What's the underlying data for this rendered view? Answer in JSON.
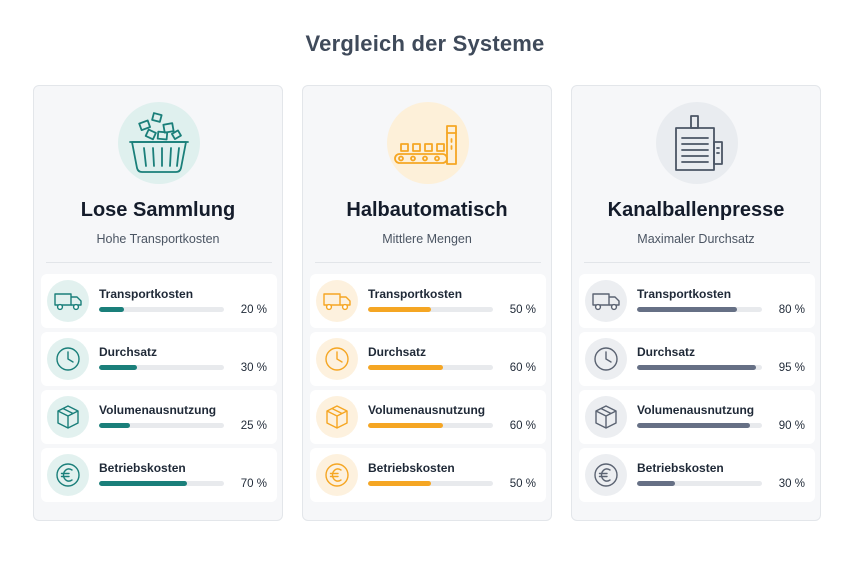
{
  "page": {
    "title": "Vergleich der Systeme"
  },
  "colors": {
    "teal": "#1a7f7a",
    "orange": "#f5a623",
    "slate": "#667085"
  },
  "cards": [
    {
      "title": "Lose Sammlung",
      "subtitle": "Hohe Transportkosten",
      "hero_icon": "loose-basket-icon",
      "metrics": [
        {
          "label": "Transportkosten",
          "value": "20 %",
          "level": 20,
          "icon": "truck-icon"
        },
        {
          "label": "Durchsatz",
          "value": "30 %",
          "level": 30,
          "icon": "clock-icon"
        },
        {
          "label": "Volumenausnutzung",
          "value": "25 %",
          "level": 25,
          "icon": "box-icon"
        },
        {
          "label": "Betriebskosten",
          "value": "70 %",
          "level": 70,
          "icon": "euro-icon"
        }
      ]
    },
    {
      "title": "Halbautomatisch",
      "subtitle": "Mittlere Mengen",
      "hero_icon": "conveyor-icon",
      "metrics": [
        {
          "label": "Transportkosten",
          "value": "50 %",
          "level": 50,
          "icon": "truck-icon"
        },
        {
          "label": "Durchsatz",
          "value": "60 %",
          "level": 60,
          "icon": "clock-icon"
        },
        {
          "label": "Volumenausnutzung",
          "value": "60 %",
          "level": 60,
          "icon": "box-icon"
        },
        {
          "label": "Betriebskosten",
          "value": "50 %",
          "level": 50,
          "icon": "euro-icon"
        }
      ]
    },
    {
      "title": "Kanalballenpresse",
      "subtitle": "Maximaler Durchsatz",
      "hero_icon": "baler-press-icon",
      "metrics": [
        {
          "label": "Transportkosten",
          "value": "80 %",
          "level": 80,
          "icon": "truck-icon"
        },
        {
          "label": "Durchsatz",
          "value": "95 %",
          "level": 95,
          "icon": "clock-icon"
        },
        {
          "label": "Volumenausnutzung",
          "value": "90 %",
          "level": 90,
          "icon": "box-icon"
        },
        {
          "label": "Betriebskosten",
          "value": "30 %",
          "level": 30,
          "icon": "euro-icon"
        }
      ]
    }
  ]
}
